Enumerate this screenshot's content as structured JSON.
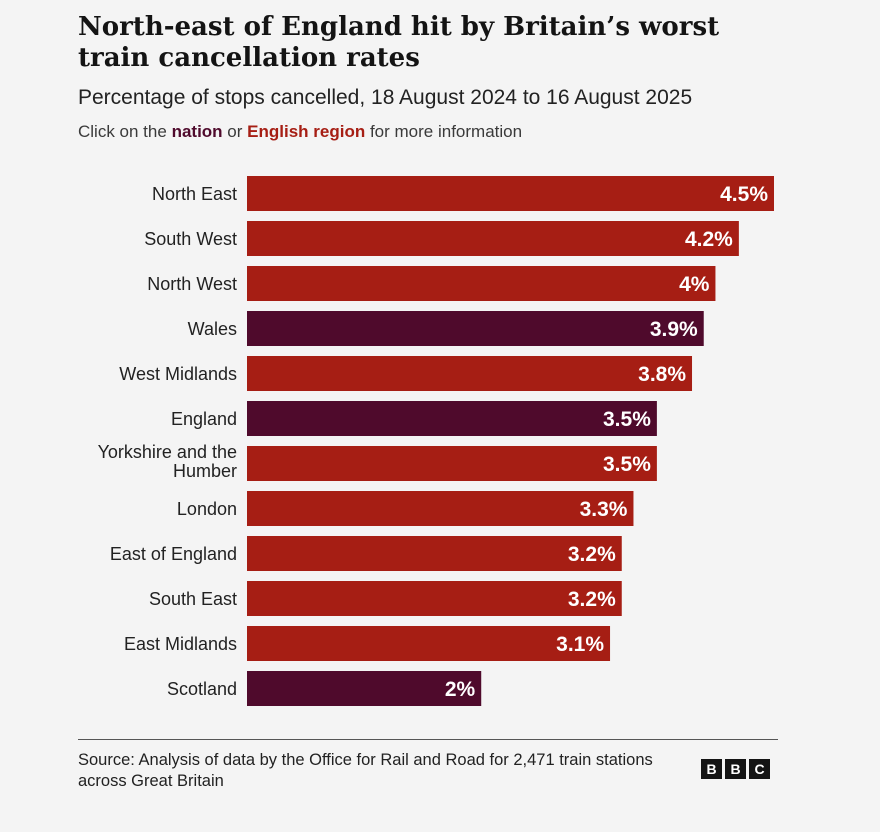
{
  "header": {
    "title": "North-east of England hit by Britain’s worst train cancellation rates",
    "subtitle": "Percentage of stops cancelled, 18 August 2024 to 16 August 2025",
    "instruction_prefix": "Click on the",
    "instruction_nation": "nation",
    "instruction_or": "or",
    "instruction_region": "English region",
    "instruction_suffix": "for more information"
  },
  "colors": {
    "region": "#a61e14",
    "nation": "#4f0a2c"
  },
  "chart_data": {
    "type": "bar",
    "orientation": "horizontal",
    "categories": [
      "North East",
      "South West",
      "North West",
      "Wales",
      "West Midlands",
      "England",
      "Yorkshire and the Humber",
      "London",
      "East of England",
      "South East",
      "East Midlands",
      "Scotland"
    ],
    "values": [
      4.5,
      4.2,
      4.0,
      3.9,
      3.8,
      3.5,
      3.5,
      3.3,
      3.2,
      3.2,
      3.1,
      2.0
    ],
    "value_labels": [
      "4.5%",
      "4.2%",
      "4%",
      "3.9%",
      "3.8%",
      "3.5%",
      "3.5%",
      "3.3%",
      "3.2%",
      "3.2%",
      "3.1%",
      "2%"
    ],
    "kinds": [
      "region",
      "region",
      "region",
      "nation",
      "region",
      "nation",
      "region",
      "region",
      "region",
      "region",
      "region",
      "nation"
    ],
    "xlim": [
      0,
      4.5
    ],
    "grid": false,
    "legend": "none"
  },
  "footer": {
    "source": "Source: Analysis of data by the Office for Rail and Road for 2,471 train stations across Great Britain",
    "logo_letters": [
      "B",
      "B",
      "C"
    ]
  }
}
